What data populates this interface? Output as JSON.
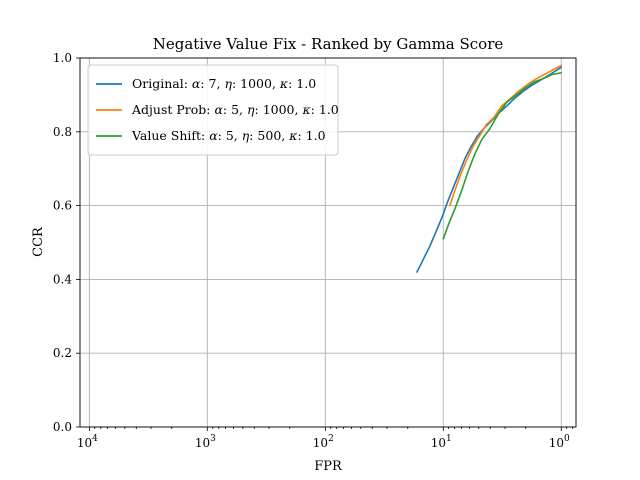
{
  "chart_data": {
    "type": "line",
    "title": "Negative Value Fix - Ranked by Gamma Score",
    "xlabel": "FPR",
    "ylabel": "CCR",
    "x_scale": "log",
    "x_reversed": true,
    "xlim": [
      12000,
      0.75
    ],
    "ylim": [
      0.0,
      1.0
    ],
    "grid": true,
    "legend_position": "upper-left",
    "x_ticks": [
      {
        "value": 10000,
        "base": "10",
        "exp": "4"
      },
      {
        "value": 1000,
        "base": "10",
        "exp": "3"
      },
      {
        "value": 100,
        "base": "10",
        "exp": "2"
      },
      {
        "value": 10,
        "base": "10",
        "exp": "1"
      },
      {
        "value": 1,
        "base": "10",
        "exp": "0"
      }
    ],
    "y_ticks": [
      {
        "value": 0.0,
        "label": "0.0"
      },
      {
        "value": 0.2,
        "label": "0.2"
      },
      {
        "value": 0.4,
        "label": "0.4"
      },
      {
        "value": 0.6,
        "label": "0.6"
      },
      {
        "value": 0.8,
        "label": "0.8"
      },
      {
        "value": 1.0,
        "label": "1.0"
      }
    ],
    "series": [
      {
        "name": "Original: α: 7, η: 1000, κ: 1.0",
        "legend_parts": [
          {
            "t": "Original: ",
            "i": false
          },
          {
            "t": "α",
            "i": true
          },
          {
            "t": ": 7, ",
            "i": false
          },
          {
            "t": "η",
            "i": true
          },
          {
            "t": ": 1000, ",
            "i": false
          },
          {
            "t": "κ",
            "i": true
          },
          {
            "t": ": 1.0",
            "i": false
          }
        ],
        "color": "#1f77b4",
        "x": [
          16.7,
          15.0,
          13.0,
          11.5,
          10.2,
          9.2,
          8.2,
          7.3,
          6.5,
          5.8,
          5.1,
          4.5,
          3.9,
          3.4,
          2.9,
          2.5,
          2.1,
          1.8,
          1.5,
          1.25,
          1.0
        ],
        "y": [
          0.42,
          0.45,
          0.49,
          0.53,
          0.57,
          0.61,
          0.65,
          0.69,
          0.73,
          0.76,
          0.79,
          0.81,
          0.83,
          0.85,
          0.87,
          0.89,
          0.91,
          0.925,
          0.94,
          0.955,
          0.975
        ]
      },
      {
        "name": "Adjust Prob: α: 5, η: 1000, κ: 1.0",
        "legend_parts": [
          {
            "t": "Adjust Prob: ",
            "i": false
          },
          {
            "t": "α",
            "i": true
          },
          {
            "t": ": 5, ",
            "i": false
          },
          {
            "t": "η",
            "i": true
          },
          {
            "t": ": 1000, ",
            "i": false
          },
          {
            "t": "κ",
            "i": true
          },
          {
            "t": ": 1.0",
            "i": false
          }
        ],
        "color": "#ff7f0e",
        "x": [
          8.8,
          8.0,
          7.2,
          6.4,
          5.6,
          4.9,
          4.3,
          3.7,
          3.2,
          2.7,
          2.3,
          1.9,
          1.6,
          1.3,
          1.0
        ],
        "y": [
          0.6,
          0.64,
          0.68,
          0.72,
          0.76,
          0.79,
          0.82,
          0.84,
          0.87,
          0.89,
          0.91,
          0.93,
          0.945,
          0.96,
          0.98
        ]
      },
      {
        "name": "Value Shift: α: 5, η: 500, κ: 1.0",
        "legend_parts": [
          {
            "t": "Value Shift: ",
            "i": false
          },
          {
            "t": "α",
            "i": true
          },
          {
            "t": ": 5, ",
            "i": false
          },
          {
            "t": "η",
            "i": true
          },
          {
            "t": ": 500, ",
            "i": false
          },
          {
            "t": "κ",
            "i": true
          },
          {
            "t": ": 1.0",
            "i": false
          }
        ],
        "color": "#2ca02c",
        "x": [
          10.0,
          9.0,
          8.0,
          7.0,
          6.2,
          5.4,
          4.7,
          4.0,
          3.4,
          2.9,
          2.4,
          2.0,
          1.7,
          1.4,
          1.2,
          1.0
        ],
        "y": [
          0.51,
          0.55,
          0.59,
          0.64,
          0.69,
          0.74,
          0.78,
          0.81,
          0.85,
          0.88,
          0.9,
          0.92,
          0.935,
          0.945,
          0.955,
          0.96
        ]
      }
    ]
  }
}
